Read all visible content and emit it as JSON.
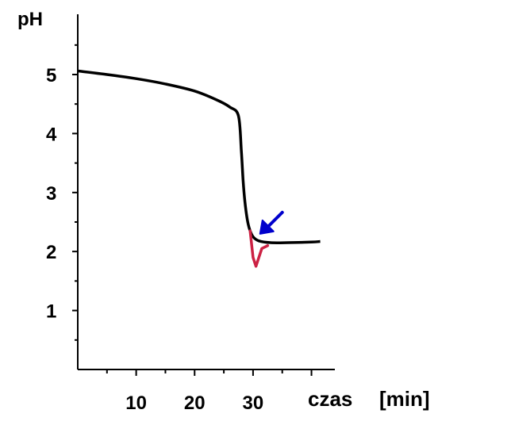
{
  "chart_data": {
    "type": "line",
    "ylabel": "pH",
    "xlabel": "czas",
    "xunit": "[min]",
    "xlim": [
      0,
      44
    ],
    "ylim": [
      0,
      5.6
    ],
    "x_ticks": [
      10,
      20,
      30
    ],
    "y_ticks": [
      1,
      2,
      3,
      4,
      5
    ],
    "grid": false,
    "series": [
      {
        "color": "#000000",
        "x": [
          0,
          5,
          10,
          15,
          20,
          24,
          26,
          27.5,
          28.0,
          28.3,
          28.6,
          29.0,
          29.4,
          30.0,
          31.0,
          33.0,
          36.0,
          40.0,
          41.5
        ],
        "y": [
          5.06,
          5.0,
          4.93,
          4.84,
          4.72,
          4.56,
          4.45,
          4.3,
          3.7,
          3.2,
          2.85,
          2.55,
          2.38,
          2.25,
          2.18,
          2.15,
          2.15,
          2.16,
          2.17
        ]
      }
    ],
    "annotations": [
      {
        "kind": "arrow",
        "color": "#0000cc",
        "x": 31.2,
        "y": 2.3
      },
      {
        "kind": "dip-mark",
        "color": "#cc2244",
        "x": [
          29.5,
          30.0,
          30.5,
          31.5,
          32.5
        ],
        "y": [
          2.35,
          1.9,
          1.75,
          2.05,
          2.1
        ]
      }
    ]
  }
}
